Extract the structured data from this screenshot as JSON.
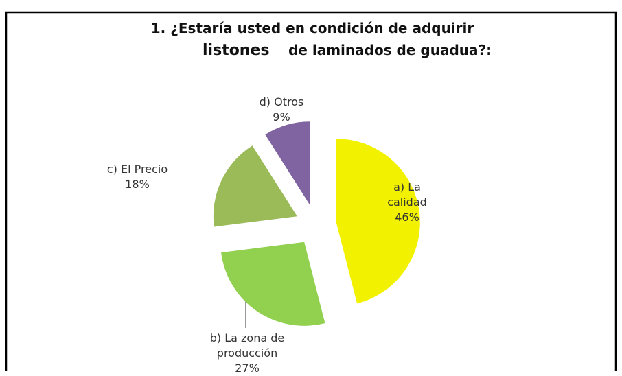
{
  "chart_data": {
    "type": "pie",
    "title": [
      "1. ¿Estaría usted en condición de adquirir",
      "listones",
      "de laminados de guadua?:"
    ],
    "categories": [
      "a) La calidad",
      "b) La zona de producción",
      "c) El Precio",
      "d) Otros"
    ],
    "values": [
      46,
      27,
      18,
      9
    ],
    "value_labels": [
      "46%",
      "27%",
      "18%",
      "9%"
    ],
    "colors": [
      "#f2f200",
      "#92d050",
      "#9bbb59",
      "#8064a2"
    ]
  }
}
